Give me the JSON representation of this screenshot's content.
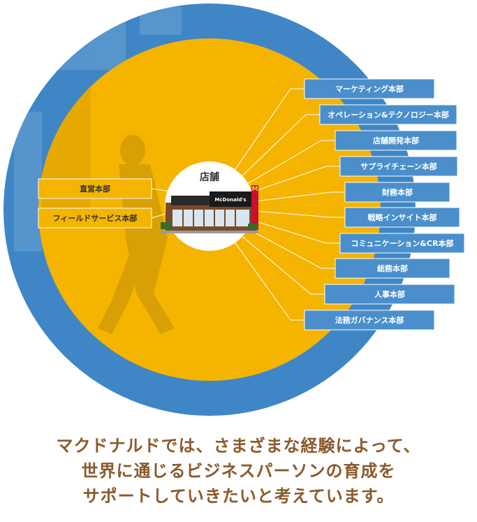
{
  "center": {
    "label": "店舗"
  },
  "left_departments": [
    {
      "label": "直営本部"
    },
    {
      "label": "フィールドサービス本部"
    }
  ],
  "right_departments": [
    {
      "label": "マーケティング本部"
    },
    {
      "label": "オペレーション&テクノロジー本部"
    },
    {
      "label": "店舗開発本部"
    },
    {
      "label": "サプライチェーン本部"
    },
    {
      "label": "財務本部"
    },
    {
      "label": "戦略インサイト本部"
    },
    {
      "label": "コミュニケーション&CR本部"
    },
    {
      "label": "総務本部"
    },
    {
      "label": "人事本部"
    },
    {
      "label": "法務ガバナンス本部"
    }
  ],
  "store_sign": "McDonald's",
  "caption": [
    "マクドナルドでは、さまざまな経験によって、",
    "世界に通じるビジネスパーソンの育成を",
    "サポートしていきたいと考えています。"
  ],
  "colors": {
    "outer_ring": "#3f86c6",
    "inner_disc": "#f4b400",
    "box_fill": "#4a8fcc",
    "left_box_fill": "#f4b400",
    "caption": "#8a5a2b"
  }
}
